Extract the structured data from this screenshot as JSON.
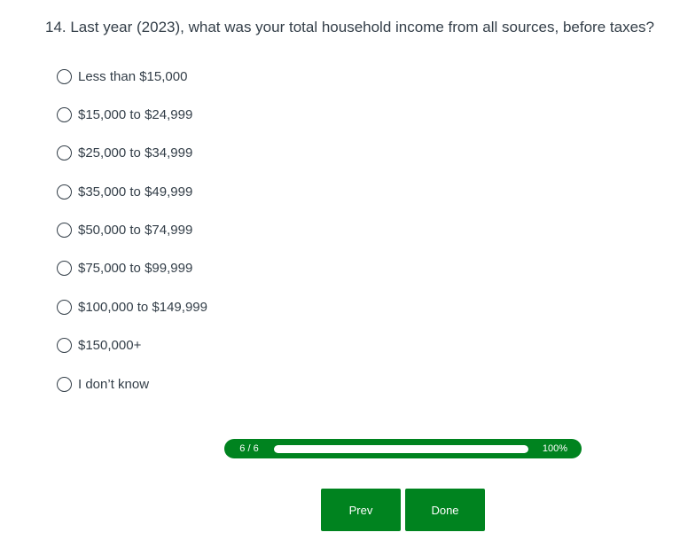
{
  "question": {
    "text": "14. Last year (2023), what was your total household income from all sources, before taxes?"
  },
  "options": [
    {
      "label": "Less than $15,000"
    },
    {
      "label": "$15,000 to $24,999"
    },
    {
      "label": "$25,000 to $34,999"
    },
    {
      "label": "$35,000 to $49,999"
    },
    {
      "label": "$50,000 to $74,999"
    },
    {
      "label": "$75,000 to $99,999"
    },
    {
      "label": "$100,000 to $149,999"
    },
    {
      "label": "$150,000+"
    },
    {
      "label": "I don’t know"
    }
  ],
  "progress": {
    "count": "6 / 6",
    "percent_label": "100%",
    "percent": 100
  },
  "buttons": {
    "prev": "Prev",
    "done": "Done"
  },
  "colors": {
    "accent": "#00831f",
    "text": "#333e48"
  }
}
